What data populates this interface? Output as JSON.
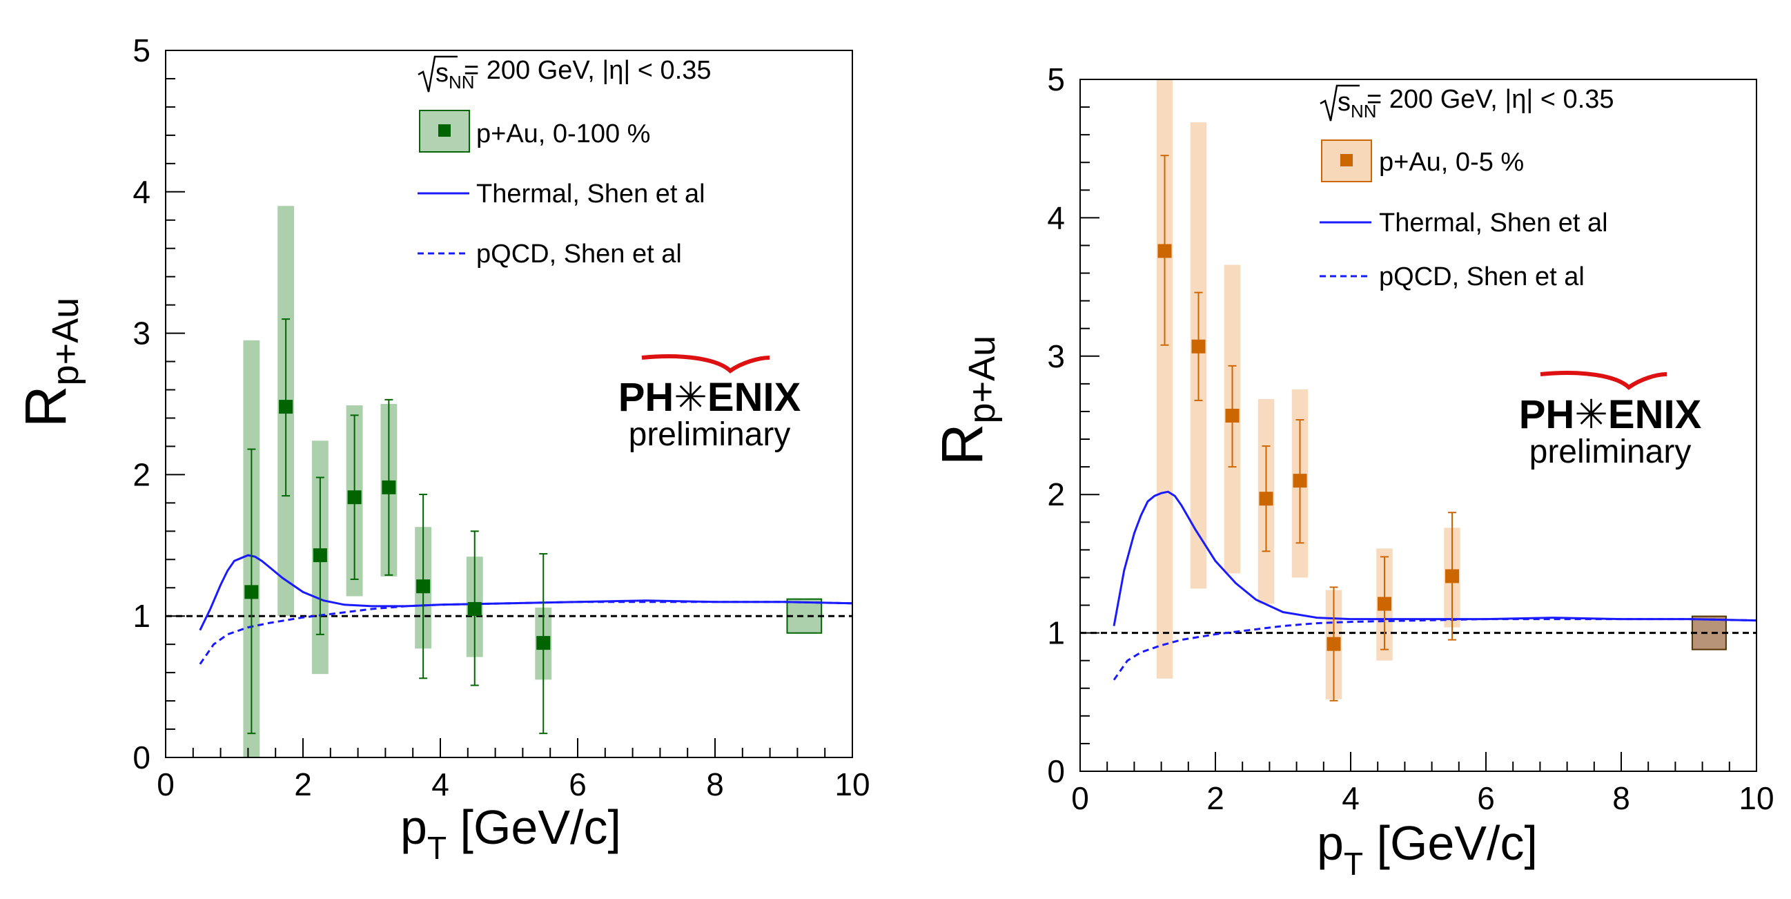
{
  "chart_data": [
    {
      "type": "scatter",
      "title": "",
      "xlabel_main": "p",
      "xlabel_sub": "T",
      "xlabel_rest": " [GeV/c]",
      "ylabel_main": "R",
      "ylabel_sub": "p+Au",
      "xlim": [
        0,
        10
      ],
      "ylim": [
        0,
        5
      ],
      "xticks": [
        "0",
        "2",
        "4",
        "6",
        "8",
        "10"
      ],
      "yticks": [
        "0",
        "1",
        "2",
        "3",
        "4",
        "5"
      ],
      "energy_label": "= 200 GeV, |η| < 0.35",
      "sqrt_label": "s",
      "sqrt_sub": "NN",
      "legend": {
        "data": "p+Au, 0-100 %",
        "thermal": "Thermal, Shen et al",
        "pqcd": "pQCD, Shen et al"
      },
      "logo": {
        "name": "PH✳ENIX",
        "sub": "preliminary"
      },
      "marker_color": "#006400",
      "box_color": "#90c090",
      "norm_box": {
        "x": 9.3,
        "y": 1.0,
        "half_width": 0.25,
        "half_height": 0.12
      },
      "series": [
        {
          "name": "p+Au, 0-100 %",
          "points": [
            {
              "x": 1.25,
              "y": 1.17,
              "stat": [
                0.17,
                2.18
              ],
              "sys": [
                0.0,
                2.95
              ]
            },
            {
              "x": 1.75,
              "y": 2.48,
              "stat": [
                1.85,
                3.1
              ],
              "sys": [
                1.0,
                3.9
              ]
            },
            {
              "x": 2.25,
              "y": 1.43,
              "stat": [
                0.87,
                1.98
              ],
              "sys": [
                0.59,
                2.24
              ]
            },
            {
              "x": 2.75,
              "y": 1.84,
              "stat": [
                1.26,
                2.42
              ],
              "sys": [
                1.14,
                2.49
              ]
            },
            {
              "x": 3.25,
              "y": 1.91,
              "stat": [
                1.29,
                2.53
              ],
              "sys": [
                1.28,
                2.5
              ]
            },
            {
              "x": 3.75,
              "y": 1.21,
              "stat": [
                0.56,
                1.86
              ],
              "sys": [
                0.77,
                1.63
              ]
            },
            {
              "x": 4.5,
              "y": 1.05,
              "stat": [
                0.51,
                1.6
              ],
              "sys": [
                0.71,
                1.42
              ]
            },
            {
              "x": 5.5,
              "y": 0.81,
              "stat": [
                0.17,
                1.44
              ],
              "sys": [
                0.55,
                1.06
              ]
            }
          ]
        },
        {
          "name": "Thermal, Shen et al",
          "x": [
            0.5,
            0.65,
            0.8,
            0.9,
            1.0,
            1.1,
            1.2,
            1.3,
            1.4,
            1.5,
            1.7,
            2.0,
            2.3,
            2.6,
            3.0,
            3.5,
            4.0,
            5.0,
            6.0,
            7.0,
            8.0,
            9.0,
            10.0
          ],
          "y": [
            0.9,
            1.05,
            1.22,
            1.32,
            1.39,
            1.41,
            1.43,
            1.42,
            1.39,
            1.35,
            1.27,
            1.17,
            1.11,
            1.08,
            1.07,
            1.07,
            1.08,
            1.09,
            1.1,
            1.11,
            1.1,
            1.1,
            1.09
          ]
        },
        {
          "name": "pQCD, Shen et al",
          "x": [
            0.5,
            0.7,
            0.9,
            1.2,
            1.5,
            2.0,
            2.5,
            3.0,
            3.5,
            4.0,
            5.0,
            6.0,
            7.0,
            8.0,
            9.0,
            10.0
          ],
          "y": [
            0.66,
            0.8,
            0.87,
            0.92,
            0.95,
            0.99,
            1.02,
            1.05,
            1.07,
            1.08,
            1.09,
            1.1,
            1.1,
            1.1,
            1.1,
            1.09
          ]
        }
      ]
    },
    {
      "type": "scatter",
      "title": "",
      "xlabel_main": "p",
      "xlabel_sub": "T",
      "xlabel_rest": " [GeV/c]",
      "ylabel_main": "R",
      "ylabel_sub": "p+Au",
      "xlim": [
        0,
        10
      ],
      "ylim": [
        0,
        5
      ],
      "xticks": [
        "0",
        "2",
        "4",
        "6",
        "8",
        "10"
      ],
      "yticks": [
        "0",
        "1",
        "2",
        "3",
        "4",
        "5"
      ],
      "energy_label": "= 200 GeV, |η| < 0.35",
      "sqrt_label": "s",
      "sqrt_sub": "NN",
      "legend": {
        "data": "p+Au, 0-5 %",
        "thermal": "Thermal, Shen et al",
        "pqcd": "pQCD, Shen et al"
      },
      "logo": {
        "name": "PH✳ENIX",
        "sub": "preliminary"
      },
      "marker_color": "#cc6600",
      "box_color": "#f5cfa8",
      "norm_box": {
        "x": 9.3,
        "y": 1.0,
        "half_width": 0.25,
        "half_height": 0.12
      },
      "series": [
        {
          "name": "p+Au, 0-5 %",
          "points": [
            {
              "x": 1.25,
              "y": 3.76,
              "stat": [
                3.08,
                4.45
              ],
              "sys": [
                0.67,
                5.0
              ]
            },
            {
              "x": 1.75,
              "y": 3.07,
              "stat": [
                2.68,
                3.46
              ],
              "sys": [
                1.32,
                4.69
              ]
            },
            {
              "x": 2.25,
              "y": 2.57,
              "stat": [
                2.2,
                2.93
              ],
              "sys": [
                1.43,
                3.66
              ]
            },
            {
              "x": 2.75,
              "y": 1.97,
              "stat": [
                1.59,
                2.35
              ],
              "sys": [
                1.21,
                2.69
              ]
            },
            {
              "x": 3.25,
              "y": 2.1,
              "stat": [
                1.65,
                2.54
              ],
              "sys": [
                1.4,
                2.76
              ]
            },
            {
              "x": 3.75,
              "y": 0.92,
              "stat": [
                0.51,
                1.33
              ],
              "sys": [
                0.52,
                1.31
              ]
            },
            {
              "x": 4.5,
              "y": 1.21,
              "stat": [
                0.88,
                1.55
              ],
              "sys": [
                0.8,
                1.61
              ]
            },
            {
              "x": 5.5,
              "y": 1.41,
              "stat": [
                0.95,
                1.87
              ],
              "sys": [
                1.04,
                1.76
              ]
            }
          ]
        },
        {
          "name": "Thermal, Shen et al",
          "x": [
            0.5,
            0.65,
            0.8,
            0.9,
            1.0,
            1.1,
            1.2,
            1.3,
            1.4,
            1.5,
            1.7,
            2.0,
            2.3,
            2.6,
            3.0,
            3.5,
            4.0,
            5.0,
            6.0,
            7.0,
            8.0,
            9.0,
            10.0
          ],
          "y": [
            1.05,
            1.45,
            1.72,
            1.85,
            1.95,
            1.99,
            2.01,
            2.02,
            1.99,
            1.92,
            1.75,
            1.52,
            1.36,
            1.24,
            1.15,
            1.11,
            1.1,
            1.1,
            1.1,
            1.11,
            1.1,
            1.1,
            1.09
          ]
        },
        {
          "name": "pQCD, Shen et al",
          "x": [
            0.5,
            0.7,
            0.9,
            1.2,
            1.5,
            2.0,
            2.5,
            3.0,
            3.5,
            4.0,
            5.0,
            6.0,
            7.0,
            8.0,
            9.0,
            10.0
          ],
          "y": [
            0.66,
            0.8,
            0.86,
            0.91,
            0.95,
            0.99,
            1.02,
            1.05,
            1.07,
            1.08,
            1.09,
            1.1,
            1.1,
            1.1,
            1.1,
            1.09
          ]
        }
      ]
    }
  ]
}
